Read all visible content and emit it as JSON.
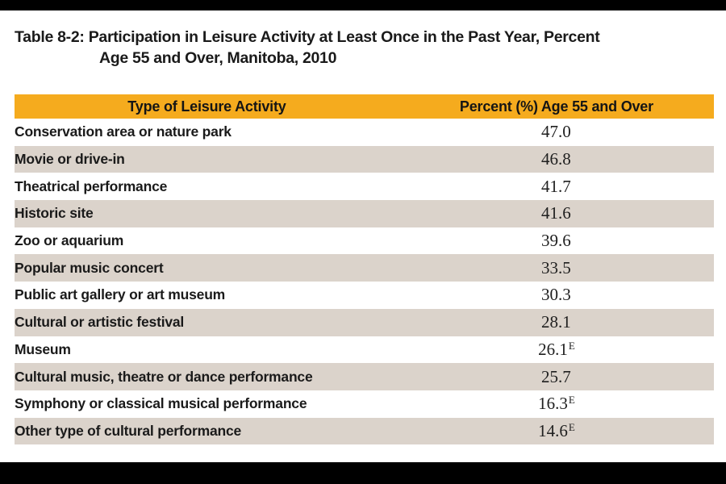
{
  "title": {
    "line1": "Table 8-2: Participation in Leisure Activity at Least Once in the Past Year, Percent",
    "line2": "Age 55 and Over, Manitoba, 2010"
  },
  "table": {
    "headers": [
      "Type of Leisure Activity",
      "Percent (%) Age 55 and Over"
    ],
    "rows": [
      {
        "activity": "Conservation area or nature park",
        "percent": "47.0",
        "flag": ""
      },
      {
        "activity": "Movie or drive-in",
        "percent": "46.8",
        "flag": ""
      },
      {
        "activity": "Theatrical performance",
        "percent": "41.7",
        "flag": ""
      },
      {
        "activity": "Historic site",
        "percent": "41.6",
        "flag": ""
      },
      {
        "activity": "Zoo or aquarium",
        "percent": "39.6",
        "flag": ""
      },
      {
        "activity": "Popular music concert",
        "percent": "33.5",
        "flag": ""
      },
      {
        "activity": "Public art gallery or art museum",
        "percent": "30.3",
        "flag": ""
      },
      {
        "activity": "Cultural or artistic festival",
        "percent": "28.1",
        "flag": ""
      },
      {
        "activity": "Museum",
        "percent": "26.1",
        "flag": "E"
      },
      {
        "activity": "Cultural music, theatre or dance performance",
        "percent": "25.7",
        "flag": ""
      },
      {
        "activity": "Symphony or classical musical performance",
        "percent": "16.3",
        "flag": "E"
      },
      {
        "activity": "Other type of cultural performance",
        "percent": "14.6",
        "flag": "E"
      }
    ]
  },
  "colors": {
    "header_bg": "#F5AB1E",
    "row_alt_bg": "#DBD3CB",
    "row_bg": "#FFFFFF",
    "border_bar": "#000000",
    "text": "#1A1A1A"
  },
  "chart_data": {
    "type": "table",
    "title": "Table 8-2: Participation in Leisure Activity at Least Once in the Past Year, Percent Age 55 and Over, Manitoba, 2010",
    "categories": [
      "Conservation area or nature park",
      "Movie or drive-in",
      "Theatrical performance",
      "Historic site",
      "Zoo or aquarium",
      "Popular music concert",
      "Public art gallery or art museum",
      "Cultural or artistic festival",
      "Museum",
      "Cultural music, theatre or dance performance",
      "Symphony or classical musical performance",
      "Other type of cultural performance"
    ],
    "values": [
      47.0,
      46.8,
      41.7,
      41.6,
      39.6,
      33.5,
      30.3,
      28.1,
      26.1,
      25.7,
      16.3,
      14.6
    ],
    "estimate_flagged": [
      "Museum",
      "Symphony or classical musical performance",
      "Other type of cultural performance"
    ]
  }
}
